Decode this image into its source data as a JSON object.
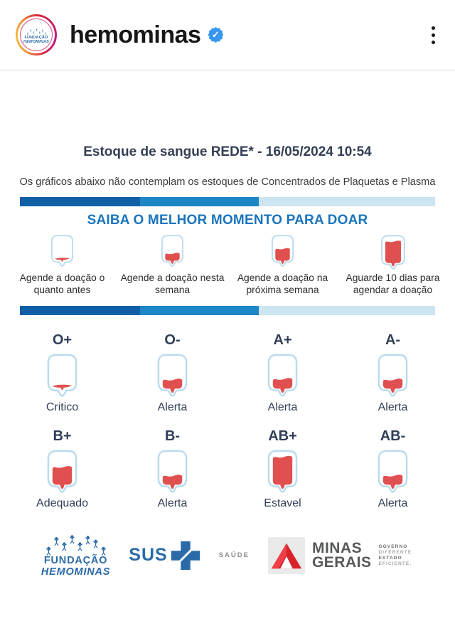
{
  "colors": {
    "blood_red": "#e05050",
    "bag_stroke": "#bcdcee",
    "navy_text": "#313e58",
    "heading_blue": "#1a75bd",
    "brand_blue": "#2a6aa8",
    "verified_blue": "#3797f0"
  },
  "header": {
    "username": "hemominas",
    "verified_check": "✓",
    "avatar_line1": "FUNDAÇÃO",
    "avatar_line2": "HEMOMINAS"
  },
  "post": {
    "title": "Estoque de sangue REDE* - 16/05/2024 10:54",
    "subtitle": "Os gráficos abaixo não contemplam os estoques de Concentrados de Plaquetas e Plasma",
    "section_heading": "SAIBA O MELHOR MOMENTO PARA DOAR",
    "bar_segments": [
      {
        "color": "#1160a6",
        "width_percent": 29
      },
      {
        "color": "#1c86c6",
        "width_percent": 28.5
      },
      {
        "color": "#cde4f2",
        "width_percent": 42.5
      }
    ],
    "legend": [
      {
        "label": "Agende a doação o quanto antes",
        "fill_percent": 5
      },
      {
        "label": "Agende a doação nesta semana",
        "fill_percent": 35
      },
      {
        "label": "Agende a doação na próxima semana",
        "fill_percent": 55
      },
      {
        "label": "Aguarde 10 dias para agendar a doação",
        "fill_percent": 88
      }
    ],
    "stocks": [
      {
        "type": "O+",
        "status": "Critico",
        "fill_percent": 5
      },
      {
        "type": "O-",
        "status": "Alerta",
        "fill_percent": 33
      },
      {
        "type": "A+",
        "status": "Alerta",
        "fill_percent": 35
      },
      {
        "type": "A-",
        "status": "Alerta",
        "fill_percent": 33
      },
      {
        "type": "B+",
        "status": "Adequado",
        "fill_percent": 60
      },
      {
        "type": "B-",
        "status": "Alerta",
        "fill_percent": 33
      },
      {
        "type": "AB+",
        "status": "Estavel",
        "fill_percent": 92
      },
      {
        "type": "AB-",
        "status": "Alerta",
        "fill_percent": 33
      }
    ]
  },
  "footer": {
    "fundacao_line1": "FUNDAÇÃO",
    "fundacao_line2": "HEMOMINAS",
    "sus_label": "SUS",
    "saude_label": "SAÚDE",
    "mg_line1": "MINAS",
    "mg_line2": "GERAIS",
    "gov_lines": [
      "GOVERNO",
      "DIFERENTE.",
      "ESTADO",
      "EFICIENTE."
    ]
  }
}
